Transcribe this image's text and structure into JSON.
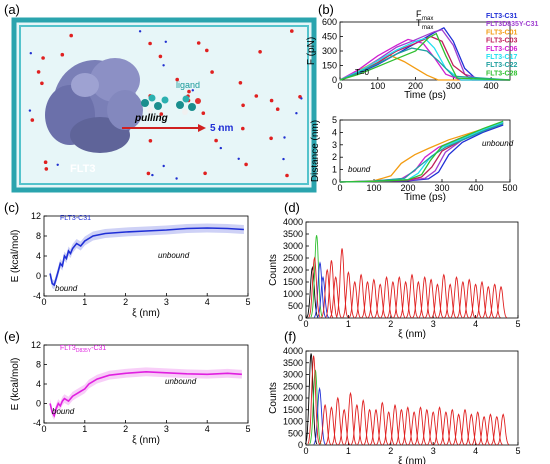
{
  "panels": {
    "a": {
      "label": "(a)",
      "text_protein": "FLT3",
      "text_ligand": "ligand",
      "text_pulling": "pulling",
      "text_distance": "5 nm"
    },
    "b": {
      "label": "(b)",
      "fmax_label": "F",
      "fmax_sub": "max",
      "tmax_label": "T",
      "tmax_sub": "max",
      "t0_label": "T=0",
      "bound_label": "bound",
      "unbound_label": "unbound"
    },
    "c": {
      "label": "(c)",
      "series_label": "FLT3-C31",
      "bound_label": "bound",
      "unbound_label": "unbound"
    },
    "d": {
      "label": "(d)"
    },
    "e": {
      "label": "(e)",
      "series_label_main": "FLT3",
      "series_label_sub": "D835Y",
      "series_label_tail": "-C31",
      "bound_label": "bound",
      "unbound_label": "unbound"
    },
    "f": {
      "label": "(f)"
    }
  },
  "colors": {
    "C31": "#1f2fd6",
    "FLT3D835Y_C31": "#a040d0",
    "C01": "#f39c12",
    "C03": "#c0205a",
    "C06": "#d020d0",
    "C17": "#20e0f0",
    "C22": "#20a0a0",
    "C28": "#30c030",
    "hist_red": "#e02020",
    "hist_green": "#30c030",
    "hist_blue": "#1f2fd6",
    "hist_black": "#000000",
    "pmf_blue": "#1f2fd6",
    "pmf_magenta": "#e020e0"
  },
  "chart_data": [
    {
      "id": "b-top",
      "type": "line",
      "xlabel": "Time (ps)",
      "ylabel": "F (pN)",
      "xlim": [
        0,
        450
      ],
      "ylim": [
        0,
        600
      ],
      "xticks": [
        0,
        100,
        200,
        300,
        400
      ],
      "yticks": [
        0,
        150,
        300,
        450,
        600
      ],
      "legend_position": "right",
      "series": [
        {
          "name": "FLT3-C31",
          "color": "#1f2fd6",
          "x": [
            0,
            50,
            100,
            150,
            200,
            250,
            275,
            300,
            330,
            360,
            400,
            450
          ],
          "y": [
            0,
            70,
            160,
            270,
            380,
            490,
            540,
            400,
            120,
            10,
            0,
            0
          ]
        },
        {
          "name": "FLT3D835Y-C31",
          "color": "#a040d0",
          "x": [
            0,
            50,
            100,
            150,
            190,
            250,
            270,
            300,
            330,
            380,
            450
          ],
          "y": [
            0,
            90,
            210,
            340,
            400,
            500,
            520,
            360,
            60,
            0,
            0
          ]
        },
        {
          "name": "FLT3-C01",
          "color": "#f39c12",
          "x": [
            0,
            50,
            100,
            130,
            170,
            200,
            230,
            260,
            300,
            450
          ],
          "y": [
            0,
            100,
            200,
            260,
            190,
            120,
            50,
            0,
            0,
            0
          ]
        },
        {
          "name": "FLT3-C03",
          "color": "#c0205a",
          "x": [
            0,
            50,
            100,
            150,
            200,
            240,
            270,
            300,
            350,
            450
          ],
          "y": [
            0,
            80,
            180,
            300,
            380,
            450,
            400,
            150,
            0,
            0
          ]
        },
        {
          "name": "FLT3-C06",
          "color": "#d020d0",
          "x": [
            0,
            50,
            100,
            150,
            180,
            220,
            250,
            280,
            320,
            450
          ],
          "y": [
            0,
            110,
            250,
            360,
            420,
            380,
            230,
            60,
            0,
            0
          ]
        },
        {
          "name": "FLT3-C17",
          "color": "#20e0f0",
          "x": [
            0,
            50,
            100,
            150,
            200,
            225,
            250,
            280,
            320,
            450
          ],
          "y": [
            0,
            90,
            200,
            310,
            400,
            430,
            330,
            120,
            0,
            0
          ]
        },
        {
          "name": "FLT3-C22",
          "color": "#20a0a0",
          "x": [
            0,
            50,
            100,
            150,
            190,
            230,
            260,
            300,
            450
          ],
          "y": [
            0,
            80,
            170,
            270,
            330,
            300,
            200,
            40,
            0
          ]
        },
        {
          "name": "FLT3-C28",
          "color": "#30c030",
          "x": [
            0,
            50,
            100,
            150,
            200,
            235,
            255,
            280,
            310,
            450
          ],
          "y": [
            0,
            60,
            140,
            220,
            300,
            440,
            480,
            250,
            20,
            0
          ]
        }
      ]
    },
    {
      "id": "b-bottom",
      "type": "line",
      "xlabel": "Time (ps)",
      "ylabel": "Distance (nm)",
      "xlim": [
        0,
        500
      ],
      "ylim": [
        0,
        5
      ],
      "xticks": [
        0,
        100,
        200,
        300,
        400,
        500
      ],
      "yticks": [
        0,
        1,
        2,
        3,
        4,
        5
      ],
      "series": [
        {
          "name": "FLT3-C31",
          "color": "#1f2fd6",
          "x": [
            0,
            100,
            200,
            260,
            290,
            320,
            360,
            420,
            480
          ],
          "y": [
            0,
            0.05,
            0.1,
            0.25,
            0.8,
            2.2,
            3.2,
            4.0,
            4.6
          ]
        },
        {
          "name": "FLT3D835Y-C31",
          "color": "#a040d0",
          "x": [
            0,
            100,
            200,
            250,
            280,
            310,
            360,
            420,
            480
          ],
          "y": [
            0,
            0.05,
            0.12,
            0.3,
            0.9,
            2.4,
            3.4,
            4.1,
            4.7
          ]
        },
        {
          "name": "FLT3-C01",
          "color": "#f39c12",
          "x": [
            0,
            100,
            150,
            180,
            220,
            260,
            320,
            400,
            480
          ],
          "y": [
            0,
            0.1,
            0.5,
            1.5,
            2.2,
            2.7,
            3.4,
            4.1,
            4.8
          ]
        },
        {
          "name": "FLT3-C03",
          "color": "#c0205a",
          "x": [
            0,
            100,
            200,
            240,
            270,
            300,
            360,
            420,
            480
          ],
          "y": [
            0,
            0.05,
            0.15,
            0.4,
            1.2,
            2.5,
            3.4,
            4.1,
            4.7
          ]
        },
        {
          "name": "FLT3-C06",
          "color": "#d020d0",
          "x": [
            0,
            100,
            180,
            220,
            250,
            290,
            350,
            420,
            480
          ],
          "y": [
            0,
            0.08,
            0.25,
            0.9,
            2.0,
            2.8,
            3.5,
            4.2,
            4.8
          ]
        },
        {
          "name": "FLT3-C17",
          "color": "#20e0f0",
          "x": [
            0,
            100,
            200,
            230,
            260,
            300,
            360,
            420,
            480
          ],
          "y": [
            0,
            0.06,
            0.2,
            0.7,
            1.8,
            2.8,
            3.5,
            4.2,
            4.8
          ]
        },
        {
          "name": "FLT3-C22",
          "color": "#20a0a0",
          "x": [
            0,
            100,
            190,
            230,
            270,
            310,
            370,
            430,
            480
          ],
          "y": [
            0,
            0.08,
            0.3,
            1.2,
            2.1,
            2.8,
            3.5,
            4.2,
            4.7
          ]
        },
        {
          "name": "FLT3-C28",
          "color": "#30c030",
          "x": [
            0,
            100,
            200,
            240,
            265,
            300,
            360,
            420,
            480
          ],
          "y": [
            0,
            0.05,
            0.18,
            0.6,
            1.7,
            2.9,
            3.6,
            4.3,
            4.9
          ]
        }
      ]
    },
    {
      "id": "c",
      "type": "line",
      "xlabel": "ξ (nm)",
      "ylabel": "E (kcal/mol)",
      "xlim": [
        0,
        5
      ],
      "ylim": [
        -4,
        12
      ],
      "xticks": [
        0,
        1,
        2,
        3,
        4,
        5
      ],
      "yticks": [
        -4,
        0,
        4,
        8,
        12
      ],
      "series": [
        {
          "name": "FLT3-C31",
          "color": "#1f2fd6",
          "x": [
            0.15,
            0.2,
            0.25,
            0.3,
            0.35,
            0.4,
            0.45,
            0.5,
            0.55,
            0.6,
            0.65,
            0.7,
            0.8,
            0.9,
            1.0,
            1.2,
            1.5,
            2.0,
            2.5,
            3.0,
            3.5,
            4.0,
            4.5,
            4.9
          ],
          "y": [
            0.5,
            -1.5,
            -1.8,
            -0.5,
            1.0,
            2.5,
            2.0,
            4.0,
            3.5,
            5.0,
            4.5,
            5.5,
            6.5,
            6.0,
            7.0,
            8.0,
            8.5,
            8.8,
            9.0,
            9.2,
            9.5,
            9.6,
            9.5,
            9.3
          ]
        }
      ]
    },
    {
      "id": "d",
      "type": "line",
      "xlabel": "ξ (nm)",
      "ylabel": "Counts",
      "xlim": [
        0,
        5
      ],
      "ylim": [
        0,
        4000
      ],
      "xticks": [
        0,
        1,
        2,
        3,
        4,
        5
      ],
      "yticks": [
        0,
        500,
        1000,
        1500,
        2000,
        2500,
        3000,
        3500,
        4000
      ],
      "series": [
        {
          "name": "black",
          "color": "#000000",
          "centers": [
            0.15
          ],
          "heights": [
            2100
          ]
        },
        {
          "name": "green",
          "color": "#30c030",
          "centers": [
            0.25
          ],
          "heights": [
            3450
          ]
        },
        {
          "name": "blue",
          "color": "#1f2fd6",
          "centers": [
            0.33,
            0.4
          ],
          "heights": [
            2300,
            1700
          ]
        },
        {
          "name": "red",
          "color": "#e02020",
          "centers": [
            0.2,
            0.5,
            0.6,
            0.7,
            0.85,
            1.0,
            1.15,
            1.3,
            1.45,
            1.6,
            1.75,
            1.9,
            2.05,
            2.2,
            2.35,
            2.5,
            2.65,
            2.8,
            2.95,
            3.1,
            3.25,
            3.4,
            3.55,
            3.7,
            3.85,
            4.0,
            4.15,
            4.3,
            4.45,
            4.6
          ],
          "heights": [
            2500,
            2000,
            2400,
            1700,
            2900,
            1900,
            1500,
            1800,
            1500,
            1600,
            1400,
            1700,
            1500,
            1700,
            1500,
            1800,
            1500,
            1700,
            1600,
            1400,
            1800,
            1400,
            1700,
            1500,
            1600,
            1400,
            1500,
            1300,
            1400,
            1300
          ]
        }
      ]
    },
    {
      "id": "e",
      "type": "line",
      "xlabel": "ξ (nm)",
      "ylabel": "E (kcal/mol)",
      "xlim": [
        0,
        5
      ],
      "ylim": [
        -4,
        12
      ],
      "xticks": [
        0,
        1,
        2,
        3,
        4,
        5
      ],
      "yticks": [
        -4,
        0,
        4,
        8,
        12
      ],
      "series": [
        {
          "name": "FLT3D835Y-C31",
          "color": "#e020e0",
          "x": [
            0.15,
            0.2,
            0.25,
            0.3,
            0.35,
            0.4,
            0.45,
            0.5,
            0.6,
            0.7,
            0.8,
            0.9,
            1.0,
            1.1,
            1.3,
            1.6,
            2.0,
            2.5,
            3.0,
            3.5,
            4.0,
            4.5,
            4.85
          ],
          "y": [
            0,
            -1.8,
            -2.5,
            -1.0,
            0.0,
            -0.5,
            0.5,
            1.0,
            0.5,
            1.5,
            2.0,
            2.5,
            3.0,
            4.0,
            5.0,
            5.8,
            6.2,
            6.5,
            6.3,
            6.1,
            6.0,
            6.2,
            6.0
          ]
        }
      ]
    },
    {
      "id": "f",
      "type": "line",
      "xlabel": "ξ (nm)",
      "ylabel": "Counts",
      "xlim": [
        0,
        5
      ],
      "ylim": [
        0,
        4000
      ],
      "xticks": [
        0,
        1,
        2,
        3,
        4,
        5
      ],
      "yticks": [
        0,
        500,
        1000,
        1500,
        2000,
        2500,
        3000,
        3500,
        4000
      ],
      "series": [
        {
          "name": "black",
          "color": "#000000",
          "centers": [
            0.12
          ],
          "heights": [
            3900
          ]
        },
        {
          "name": "green",
          "color": "#30c030",
          "centers": [
            0.22
          ],
          "heights": [
            3200
          ]
        },
        {
          "name": "blue",
          "color": "#1f2fd6",
          "centers": [
            0.32
          ],
          "heights": [
            2400
          ]
        },
        {
          "name": "red",
          "color": "#e02020",
          "centers": [
            0.18,
            0.45,
            0.6,
            0.75,
            0.9,
            1.05,
            1.2,
            1.35,
            1.5,
            1.65,
            1.8,
            1.95,
            2.1,
            2.25,
            2.4,
            2.55,
            2.7,
            2.85,
            3.0,
            3.15,
            3.3,
            3.45,
            3.6,
            3.75,
            3.9,
            4.05,
            4.2,
            4.35,
            4.5,
            4.65
          ],
          "heights": [
            3800,
            1700,
            1600,
            2000,
            1500,
            2200,
            1700,
            1900,
            1500,
            1500,
            1800,
            1400,
            1700,
            1500,
            1600,
            1400,
            1600,
            1500,
            1400,
            1600,
            1400,
            1500,
            1300,
            1500,
            1300,
            1400,
            1200,
            1300,
            1200,
            1300
          ]
        }
      ]
    }
  ]
}
